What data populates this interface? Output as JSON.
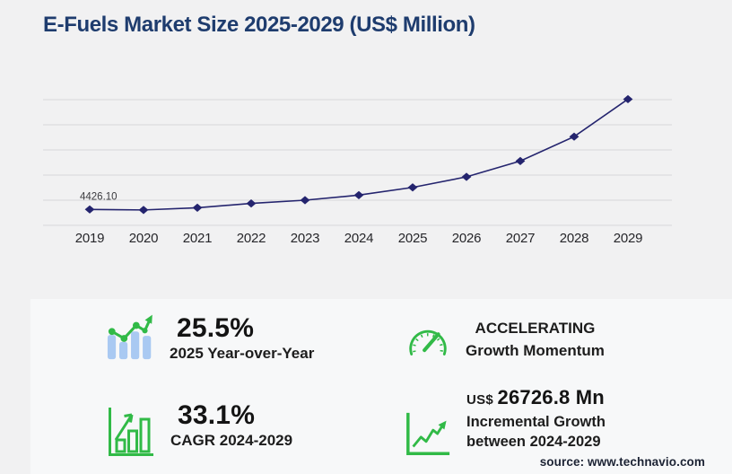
{
  "page": {
    "title": "E-Fuels Market Size 2025-2029 (US$ Million)",
    "source": "source: www.technavio.com"
  },
  "colors": {
    "background": "#f1f1f2",
    "panel": "#f7f8f9",
    "title_navy": "#1e3c6e",
    "line_navy": "#24246e",
    "grid": "#d7d7da",
    "green": "#31ba47",
    "bar_blue": "#a9c9f2"
  },
  "chart_data": {
    "type": "line",
    "title": "E-Fuels Market Size 2025-2029 (US$ Million)",
    "x": [
      "2019",
      "2020",
      "2021",
      "2022",
      "2023",
      "2024",
      "2025",
      "2026",
      "2027",
      "2028",
      "2029"
    ],
    "values": [
      4426.1,
      4280,
      4900,
      6100,
      7000,
      8411.8,
      10556.8,
      13500,
      17900,
      24700,
      35138.6
    ],
    "point_labels": [
      {
        "index": 0,
        "text": "4426.10"
      }
    ],
    "xlabel": "",
    "ylabel": "",
    "ylim": [
      0,
      36500
    ],
    "yticks": [
      0,
      7000,
      14000,
      21000,
      28000,
      35000
    ],
    "grid": "horizontal",
    "legend": "none",
    "marker": "diamond"
  },
  "stats": {
    "yoy": {
      "value": "25.5%",
      "label": "2025 Year-over-Year"
    },
    "momentum": {
      "line1": "ACCELERATING",
      "line2": "Growth Momentum"
    },
    "cagr": {
      "value": "33.1%",
      "label": "CAGR 2024-2029"
    },
    "incremental": {
      "currency": "US$",
      "value": "26726.8 Mn",
      "line1": "Incremental Growth",
      "line2": "between 2024-2029"
    }
  }
}
